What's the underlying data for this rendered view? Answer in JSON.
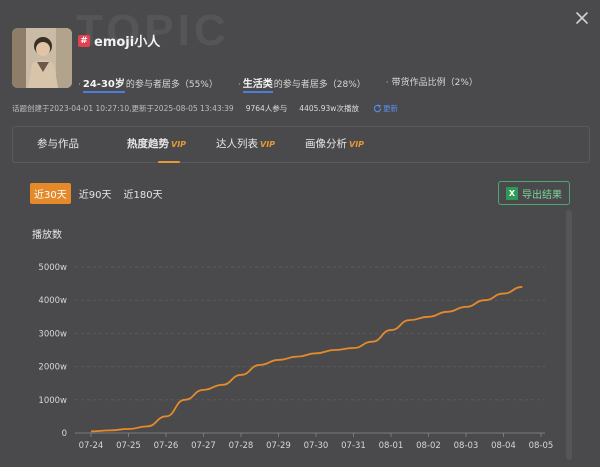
{
  "watermark": "TOPIC",
  "topic": {
    "name": "emoji小人"
  },
  "stats": [
    {
      "highlight": "24-30岁",
      "rest": "的参与者居多（55%）"
    },
    {
      "highlight": "生活类",
      "rest": "的参与者居多（28%）"
    },
    {
      "highlight": "",
      "rest": "带货作品比例（2%）"
    }
  ],
  "meta": {
    "created": "话题创建于2023-04-01 10:27:10,更新于2025-08-05 13:43:39",
    "participants": "9764人参与",
    "plays": "4405.93w次播放",
    "refresh": "更新"
  },
  "tabs": [
    {
      "label": "参与作品",
      "vip": ""
    },
    {
      "label": "热度趋势",
      "vip": "VIP"
    },
    {
      "label": "达人列表",
      "vip": "VIP"
    },
    {
      "label": "画像分析",
      "vip": "VIP"
    }
  ],
  "ranges": [
    "近30天",
    "近90天",
    "近180天"
  ],
  "export_label": "导出结果",
  "colors": {
    "accent": "#e58a2b",
    "vip": "#e59a33",
    "export": "#4ea772",
    "link": "#5b8ef0"
  },
  "chart_data": {
    "type": "line",
    "ylabel": "播放数",
    "yticks": [
      "0",
      "1000w",
      "2000w",
      "3000w",
      "4000w",
      "5000w"
    ],
    "ylim": [
      0,
      5000
    ],
    "grid": true,
    "categories": [
      "07-24",
      "07-25",
      "07-26",
      "07-27",
      "07-28",
      "07-29",
      "07-30",
      "07-31",
      "08-01",
      "08-02",
      "08-03",
      "08-04",
      "08-05"
    ],
    "series": [
      {
        "values": [
          50,
          80,
          120,
          200,
          500,
          1000,
          1300,
          1450,
          1750,
          2050,
          2200,
          2300,
          2400,
          2500,
          2560,
          2750,
          3100,
          3400,
          3500,
          3650,
          3800,
          4000,
          4200,
          4400
        ],
        "x": [
          0,
          0.5,
          1,
          1.5,
          2,
          2.5,
          3,
          3.5,
          4,
          4.5,
          5,
          5.5,
          6,
          6.5,
          7,
          7.5,
          8,
          8.5,
          9,
          9.5,
          10,
          10.5,
          11,
          11.5
        ]
      }
    ]
  }
}
